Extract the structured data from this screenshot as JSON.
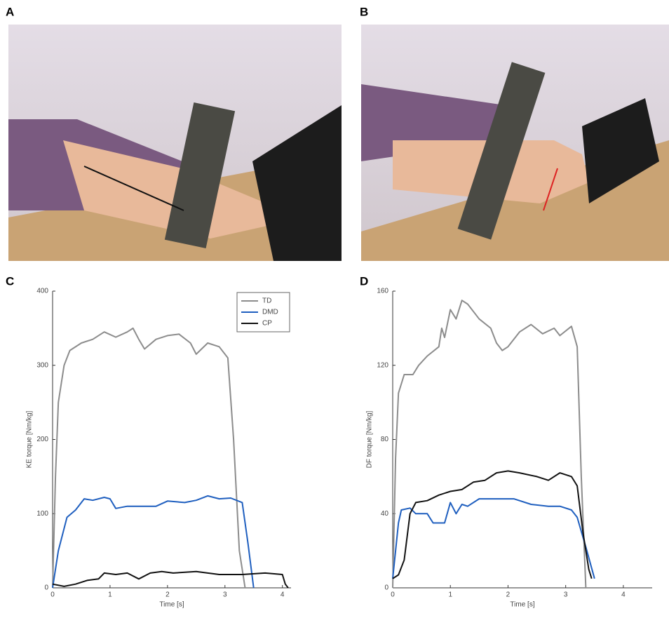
{
  "panel_labels": [
    "A",
    "B",
    "C",
    "D"
  ],
  "chart_data": [
    {
      "type": "line",
      "ylabel": "KE torque [Nm/kg]",
      "xlabel": "Time [s]",
      "xlim": [
        0,
        4.15
      ],
      "xticks": [
        0,
        1,
        2,
        3,
        4
      ],
      "ylim": [
        0,
        400
      ],
      "yticks": [
        0,
        100,
        200,
        300,
        400
      ],
      "legend": "upper right",
      "grid": false,
      "series": [
        {
          "name": "TD",
          "color": "#8c8c8c",
          "x": [
            0,
            0.05,
            0.1,
            0.2,
            0.3,
            0.5,
            0.7,
            0.9,
            1.1,
            1.3,
            1.4,
            1.5,
            1.6,
            1.8,
            2.0,
            2.2,
            2.4,
            2.5,
            2.7,
            2.9,
            3.05,
            3.15,
            3.25,
            3.35
          ],
          "values": [
            0,
            150,
            250,
            300,
            320,
            330,
            335,
            345,
            338,
            345,
            350,
            335,
            322,
            335,
            340,
            342,
            330,
            315,
            330,
            325,
            310,
            200,
            50,
            0
          ]
        },
        {
          "name": "DMD",
          "color": "#1f5fbf",
          "x": [
            0,
            0.1,
            0.25,
            0.4,
            0.55,
            0.7,
            0.9,
            1.0,
            1.1,
            1.3,
            1.6,
            1.8,
            2.0,
            2.3,
            2.5,
            2.7,
            2.9,
            3.1,
            3.3,
            3.4,
            3.5
          ],
          "values": [
            0,
            50,
            95,
            105,
            120,
            118,
            122,
            120,
            107,
            110,
            110,
            110,
            117,
            115,
            118,
            124,
            120,
            121,
            115,
            60,
            0
          ]
        },
        {
          "name": "CP",
          "color": "#111111",
          "x": [
            0,
            0.2,
            0.4,
            0.6,
            0.8,
            0.9,
            1.1,
            1.3,
            1.5,
            1.7,
            1.9,
            2.1,
            2.5,
            2.9,
            3.3,
            3.7,
            4.0,
            4.05,
            4.1
          ],
          "values": [
            5,
            2,
            5,
            10,
            12,
            20,
            18,
            20,
            12,
            20,
            22,
            20,
            22,
            18,
            18,
            20,
            18,
            5,
            0
          ]
        }
      ]
    },
    {
      "type": "line",
      "ylabel": "DF torque [Nm/kg]",
      "xlabel": "Time [s]",
      "xlim": [
        0,
        4.5
      ],
      "xticks": [
        0,
        1,
        2,
        3,
        4
      ],
      "ylim": [
        0,
        160
      ],
      "yticks": [
        0,
        40,
        80,
        120,
        160
      ],
      "legend": false,
      "grid": false,
      "series": [
        {
          "color": "#8c8c8c",
          "x": [
            0,
            0.05,
            0.1,
            0.2,
            0.35,
            0.45,
            0.6,
            0.8,
            0.85,
            0.9,
            1.0,
            1.1,
            1.2,
            1.3,
            1.5,
            1.7,
            1.8,
            1.9,
            2.0,
            2.2,
            2.4,
            2.6,
            2.8,
            2.9,
            3.1,
            3.2,
            3.27,
            3.35
          ],
          "values": [
            0,
            70,
            105,
            115,
            115,
            120,
            125,
            130,
            140,
            135,
            150,
            145,
            155,
            153,
            145,
            140,
            132,
            128,
            130,
            138,
            142,
            137,
            140,
            136,
            141,
            130,
            60,
            0
          ]
        },
        {
          "color": "#1f5fbf",
          "x": [
            0,
            0.1,
            0.15,
            0.3,
            0.4,
            0.6,
            0.7,
            0.9,
            1.0,
            1.1,
            1.2,
            1.3,
            1.5,
            1.7,
            1.9,
            2.1,
            2.4,
            2.7,
            2.9,
            3.1,
            3.2,
            3.35,
            3.5
          ],
          "values": [
            5,
            35,
            42,
            43,
            40,
            40,
            35,
            35,
            46,
            40,
            45,
            44,
            48,
            48,
            48,
            48,
            45,
            44,
            44,
            42,
            38,
            22,
            5
          ]
        },
        {
          "color": "#111111",
          "x": [
            0,
            0.1,
            0.2,
            0.3,
            0.4,
            0.6,
            0.8,
            1.0,
            1.2,
            1.4,
            1.6,
            1.8,
            2.0,
            2.2,
            2.5,
            2.7,
            2.9,
            3.1,
            3.2,
            3.3,
            3.4,
            3.45
          ],
          "values": [
            5,
            7,
            15,
            40,
            46,
            47,
            50,
            52,
            53,
            57,
            58,
            62,
            63,
            62,
            60,
            58,
            62,
            60,
            55,
            30,
            10,
            5
          ]
        }
      ]
    }
  ]
}
